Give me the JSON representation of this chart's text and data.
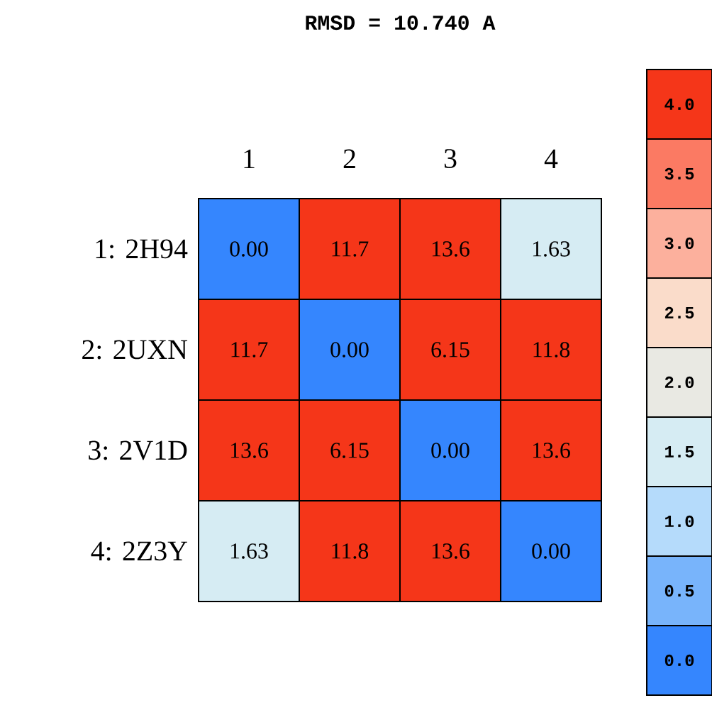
{
  "chart_data": {
    "type": "heatmap",
    "title": "RMSD = 10.740 A",
    "categories": [
      "1",
      "2",
      "3",
      "4"
    ],
    "y_categories": [
      "1: 2H94",
      "2: 2UXN",
      "3: 2V1D",
      "4: 2Z3Y"
    ],
    "cells": [
      [
        0,
        11.7,
        13.6,
        1.63
      ],
      [
        11.7,
        0,
        6.15,
        11.8
      ],
      [
        13.6,
        6.15,
        0,
        13.6
      ],
      [
        1.63,
        11.8,
        13.6,
        0
      ]
    ],
    "cell_labels": [
      [
        "0.00",
        "11.7",
        "13.6",
        "1.63"
      ],
      [
        "11.7",
        "0.00",
        "6.15",
        "11.8"
      ],
      [
        "13.6",
        "6.15",
        "0.00",
        "13.6"
      ],
      [
        "1.63",
        "11.8",
        "13.6",
        "0.00"
      ]
    ],
    "clim": [
      0,
      4
    ],
    "cticks": [
      {
        "value": 0,
        "label": "0.0"
      },
      {
        "value": 0.5,
        "label": "0.5"
      },
      {
        "value": 1,
        "label": "1.0"
      },
      {
        "value": 1.5,
        "label": "1.5"
      },
      {
        "value": 2,
        "label": "2.0"
      },
      {
        "value": 2.5,
        "label": "2.5"
      },
      {
        "value": 3,
        "label": "3.0"
      },
      {
        "value": 3.5,
        "label": "3.5"
      },
      {
        "value": 4,
        "label": "4.0"
      }
    ]
  }
}
